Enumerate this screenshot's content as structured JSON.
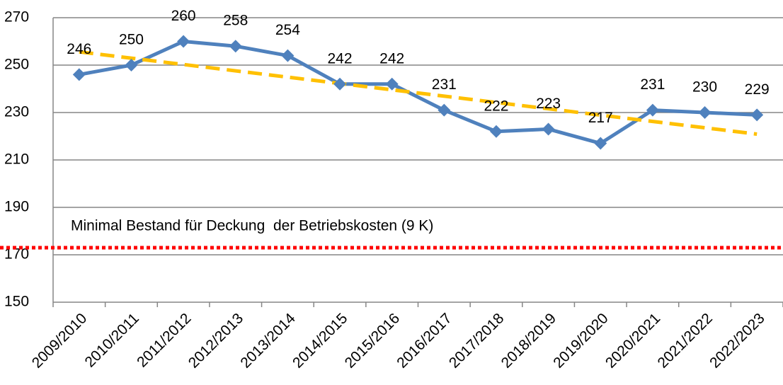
{
  "chart_data": {
    "type": "line",
    "categories": [
      "2009/2010",
      "2010/2011",
      "2011/2012",
      "2012/2013",
      "2013/2014",
      "2014/2015",
      "2015/2016",
      "2016/2017",
      "2017/2018",
      "2018/2019",
      "2019/2020",
      "2020/2021",
      "2021/2022",
      "2022/2023"
    ],
    "series": [
      {
        "color": "#4f81bd",
        "values": [
          246,
          250,
          260,
          258,
          254,
          242,
          242,
          231,
          222,
          223,
          217,
          231,
          230,
          229
        ]
      }
    ],
    "trendline": {
      "color": "#ffc000",
      "values": [
        255.6,
        220.9
      ]
    },
    "reference_line": {
      "value": 173,
      "color": "#ff0000",
      "label": "Minimal Bestand für Deckung  der Betriebskosten (9 K)"
    },
    "ylim": [
      150,
      270
    ],
    "yticks": [
      150,
      170,
      190,
      210,
      230,
      250,
      270
    ],
    "grid": true
  }
}
